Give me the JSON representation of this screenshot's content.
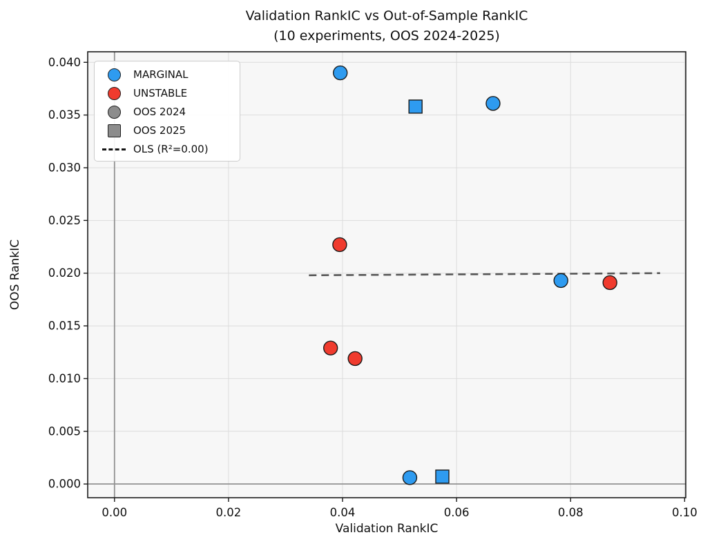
{
  "title": {
    "line1": "Validation RankIC vs Out-of-Sample RankIC",
    "line2": "(10 experiments, OOS 2024-2025)"
  },
  "legend": {
    "items": [
      {
        "label": "MARGINAL",
        "shape": "circle",
        "color": "#2e9bf0"
      },
      {
        "label": "UNSTABLE",
        "shape": "circle",
        "color": "#f03b2e"
      },
      {
        "label": "OOS 2024",
        "shape": "circle",
        "color": "#8c8c8c"
      },
      {
        "label": "OOS 2025",
        "shape": "square",
        "color": "#8c8c8c"
      },
      {
        "label": "OLS (R²=0.00)",
        "shape": "dash",
        "color": "#141414"
      }
    ]
  },
  "chart_data": {
    "type": "scatter",
    "title": "Validation RankIC vs Out-of-Sample RankIC (10 experiments, OOS 2024-2025)",
    "xlabel": "Validation RankIC",
    "ylabel": "OOS RankIC",
    "xlim": [
      -0.0047,
      0.1002
    ],
    "ylim": [
      -0.0013,
      0.041
    ],
    "x_ticks": [
      0.0,
      0.02,
      0.04,
      0.06,
      0.08,
      0.1
    ],
    "x_tick_labels": [
      "0.00",
      "0.02",
      "0.04",
      "0.06",
      "0.08",
      "0.10"
    ],
    "y_ticks": [
      0.0,
      0.005,
      0.01,
      0.015,
      0.02,
      0.025,
      0.03,
      0.035,
      0.04
    ],
    "y_tick_labels": [
      "0.000",
      "0.005",
      "0.010",
      "0.015",
      "0.020",
      "0.025",
      "0.030",
      "0.035",
      "0.040"
    ],
    "grid": true,
    "marker_shape_by_oos_year": {
      "2024": "circle",
      "2025": "square"
    },
    "series": [
      {
        "name": "MARGINAL",
        "color": "#2e9bf0",
        "points": [
          {
            "x": 0.0396,
            "y": 0.039,
            "marker": "circle",
            "oos_year": 2024
          },
          {
            "x": 0.0528,
            "y": 0.0358,
            "marker": "square",
            "oos_year": 2025
          },
          {
            "x": 0.0664,
            "y": 0.0361,
            "marker": "circle",
            "oos_year": 2024
          },
          {
            "x": 0.0783,
            "y": 0.0193,
            "marker": "circle",
            "oos_year": 2024
          },
          {
            "x": 0.0518,
            "y": 0.0006,
            "marker": "circle",
            "oos_year": 2024
          },
          {
            "x": 0.0575,
            "y": 0.0007,
            "marker": "square",
            "oos_year": 2025
          }
        ]
      },
      {
        "name": "UNSTABLE",
        "color": "#f03b2e",
        "points": [
          {
            "x": 0.0395,
            "y": 0.0227,
            "marker": "circle",
            "oos_year": 2024
          },
          {
            "x": 0.0379,
            "y": 0.0129,
            "marker": "circle",
            "oos_year": 2024
          },
          {
            "x": 0.0422,
            "y": 0.0119,
            "marker": "circle",
            "oos_year": 2024
          },
          {
            "x": 0.0869,
            "y": 0.0191,
            "marker": "circle",
            "oos_year": 2024
          }
        ]
      }
    ],
    "ols_line": {
      "label": "OLS (R²=0.00)",
      "r_squared": 0.0,
      "x": [
        0.0341,
        0.0957
      ],
      "y": [
        0.0198,
        0.02
      ],
      "style": "dashed",
      "color": "#555555"
    },
    "zero_lines": {
      "x": 0,
      "y": 0,
      "color": "#919191"
    },
    "colors": {
      "plot_background": "#f7f7f7",
      "gridline": "#dcdcdc",
      "spine": "#1a1a1a",
      "marker_edge": "#1a1a1a"
    },
    "legend_position": "upper left"
  }
}
